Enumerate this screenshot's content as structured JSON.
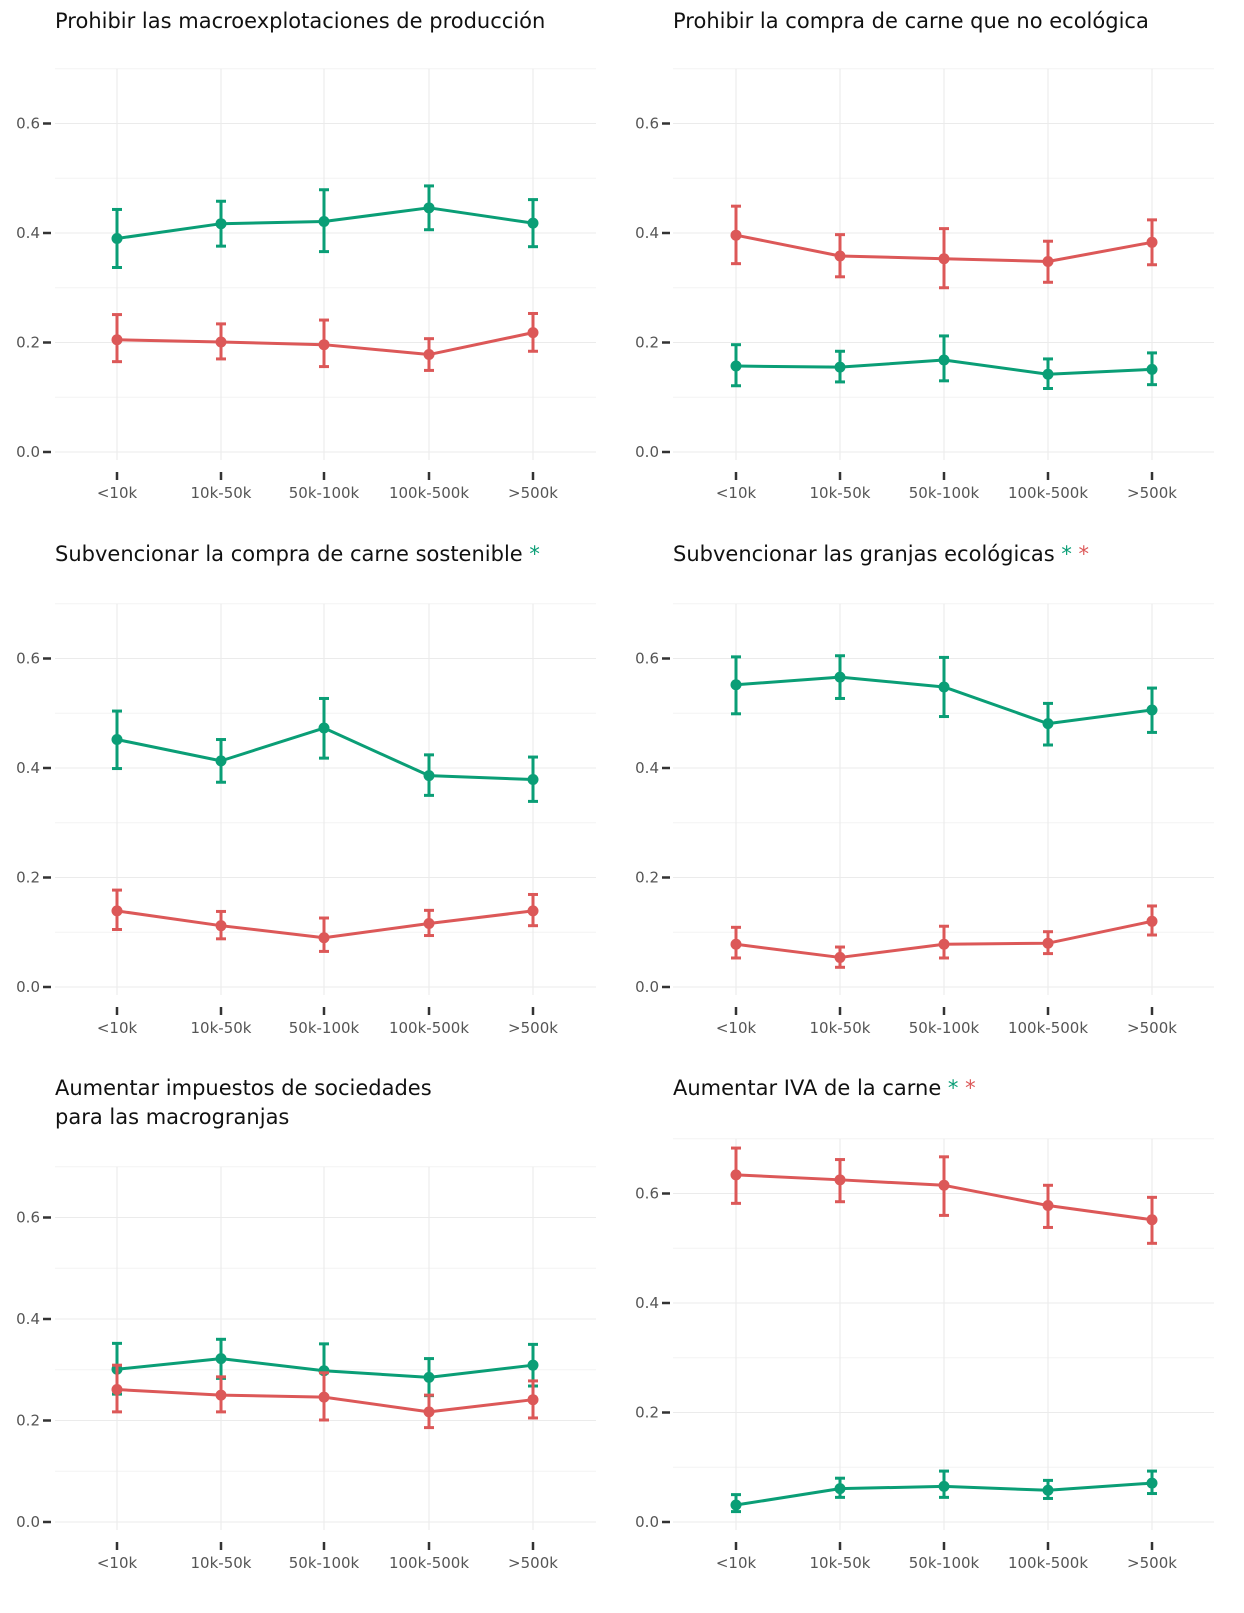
{
  "colors": {
    "green": "#0a9e76",
    "red": "#dc5858"
  },
  "chart_data": [
    {
      "type": "line",
      "title": [
        "Prohibir las macroexplotaciones de producción"
      ],
      "stars": [],
      "categories": [
        "<10k",
        "10k-50k",
        "50k-100k",
        "100k-500k",
        ">500k"
      ],
      "ylim": [
        0,
        0.7
      ],
      "yticks": [
        "0.0",
        "0.2",
        "0.4",
        "0.6"
      ],
      "series": [
        {
          "color": "green",
          "values": [
            0.39,
            0.417,
            0.421,
            0.446,
            0.418
          ],
          "lower": [
            0.337,
            0.376,
            0.366,
            0.406,
            0.375
          ],
          "upper": [
            0.443,
            0.458,
            0.479,
            0.486,
            0.461
          ]
        },
        {
          "color": "red",
          "values": [
            0.205,
            0.201,
            0.196,
            0.178,
            0.218
          ],
          "lower": [
            0.165,
            0.17,
            0.156,
            0.149,
            0.184
          ],
          "upper": [
            0.251,
            0.234,
            0.241,
            0.207,
            0.253
          ]
        }
      ]
    },
    {
      "type": "line",
      "title": [
        "Prohibir la compra de carne que no ecológica"
      ],
      "stars": [],
      "categories": [
        "<10k",
        "10k-50k",
        "50k-100k",
        "100k-500k",
        ">500k"
      ],
      "ylim": [
        0,
        0.7
      ],
      "yticks": [
        "0.0",
        "0.2",
        "0.4",
        "0.6"
      ],
      "series": [
        {
          "color": "red",
          "values": [
            0.396,
            0.358,
            0.353,
            0.348,
            0.383
          ],
          "lower": [
            0.344,
            0.32,
            0.3,
            0.31,
            0.342
          ],
          "upper": [
            0.449,
            0.397,
            0.408,
            0.385,
            0.424
          ]
        },
        {
          "color": "green",
          "values": [
            0.157,
            0.155,
            0.168,
            0.142,
            0.151
          ],
          "lower": [
            0.121,
            0.128,
            0.13,
            0.116,
            0.123
          ],
          "upper": [
            0.196,
            0.184,
            0.212,
            0.17,
            0.181
          ]
        }
      ]
    },
    {
      "type": "line",
      "title": [
        "Subvencionar la compra de carne sostenible"
      ],
      "stars": [
        "green"
      ],
      "categories": [
        "<10k",
        "10k-50k",
        "50k-100k",
        "100k-500k",
        ">500k"
      ],
      "ylim": [
        0,
        0.7
      ],
      "yticks": [
        "0.0",
        "0.2",
        "0.4",
        "0.6"
      ],
      "series": [
        {
          "color": "green",
          "values": [
            0.452,
            0.413,
            0.473,
            0.386,
            0.379
          ],
          "lower": [
            0.399,
            0.374,
            0.418,
            0.35,
            0.339
          ],
          "upper": [
            0.504,
            0.452,
            0.527,
            0.424,
            0.42
          ]
        },
        {
          "color": "red",
          "values": [
            0.139,
            0.112,
            0.09,
            0.116,
            0.139
          ],
          "lower": [
            0.105,
            0.088,
            0.065,
            0.094,
            0.112
          ],
          "upper": [
            0.177,
            0.138,
            0.126,
            0.14,
            0.169
          ]
        }
      ]
    },
    {
      "type": "line",
      "title": [
        "Subvencionar las granjas ecológicas"
      ],
      "stars": [
        "green",
        "red"
      ],
      "categories": [
        "<10k",
        "10k-50k",
        "50k-100k",
        "100k-500k",
        ">500k"
      ],
      "ylim": [
        0,
        0.7
      ],
      "yticks": [
        "0.0",
        "0.2",
        "0.4",
        "0.6"
      ],
      "series": [
        {
          "color": "green",
          "values": [
            0.552,
            0.566,
            0.548,
            0.481,
            0.506
          ],
          "lower": [
            0.499,
            0.527,
            0.494,
            0.442,
            0.465
          ],
          "upper": [
            0.603,
            0.605,
            0.602,
            0.518,
            0.546
          ]
        },
        {
          "color": "red",
          "values": [
            0.078,
            0.054,
            0.078,
            0.08,
            0.12
          ],
          "lower": [
            0.053,
            0.036,
            0.053,
            0.061,
            0.095
          ],
          "upper": [
            0.109,
            0.073,
            0.111,
            0.101,
            0.148
          ]
        }
      ]
    },
    {
      "type": "line",
      "title": [
        "Aumentar impuestos de sociedades",
        "para las macrogranjas"
      ],
      "stars": [],
      "categories": [
        "<10k",
        "10k-50k",
        "50k-100k",
        "100k-500k",
        ">500k"
      ],
      "ylim": [
        0,
        0.7
      ],
      "yticks": [
        "0.0",
        "0.2",
        "0.4",
        "0.6"
      ],
      "series": [
        {
          "color": "green",
          "values": [
            0.301,
            0.322,
            0.298,
            0.285,
            0.309
          ],
          "lower": [
            0.252,
            0.283,
            0.248,
            0.249,
            0.268
          ],
          "upper": [
            0.352,
            0.36,
            0.351,
            0.322,
            0.35
          ]
        },
        {
          "color": "red",
          "values": [
            0.261,
            0.25,
            0.246,
            0.217,
            0.241
          ],
          "lower": [
            0.217,
            0.217,
            0.201,
            0.186,
            0.205
          ],
          "upper": [
            0.309,
            0.286,
            0.294,
            0.25,
            0.278
          ]
        }
      ]
    },
    {
      "type": "line",
      "title": [
        "Aumentar IVA de la carne"
      ],
      "stars": [
        "green",
        "red"
      ],
      "categories": [
        "<10k",
        "10k-50k",
        "50k-100k",
        "100k-500k",
        ">500k"
      ],
      "ylim": [
        0,
        0.7
      ],
      "yticks": [
        "0.0",
        "0.2",
        "0.4",
        "0.6"
      ],
      "series": [
        {
          "color": "red",
          "values": [
            0.634,
            0.625,
            0.615,
            0.578,
            0.552
          ],
          "lower": [
            0.582,
            0.585,
            0.56,
            0.538,
            0.509
          ],
          "upper": [
            0.683,
            0.662,
            0.667,
            0.615,
            0.593
          ]
        },
        {
          "color": "green",
          "values": [
            0.031,
            0.061,
            0.065,
            0.058,
            0.071
          ],
          "lower": [
            0.019,
            0.045,
            0.045,
            0.043,
            0.052
          ],
          "upper": [
            0.05,
            0.08,
            0.093,
            0.076,
            0.093
          ]
        }
      ]
    }
  ]
}
